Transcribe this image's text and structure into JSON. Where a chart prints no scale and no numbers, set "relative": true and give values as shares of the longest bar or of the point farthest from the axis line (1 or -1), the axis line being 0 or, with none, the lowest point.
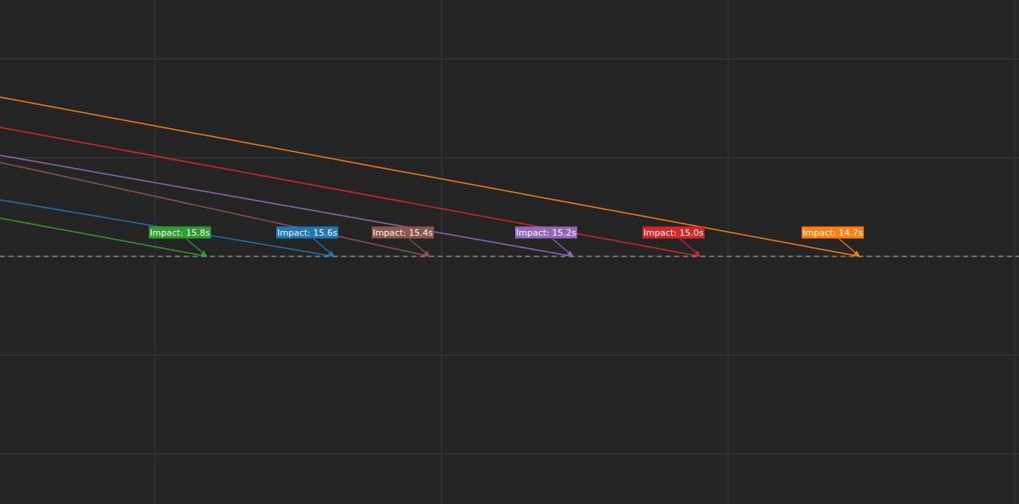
{
  "chart_data": {
    "type": "line",
    "relative": true,
    "grid": true,
    "line_style": "solid",
    "marker": "none",
    "categories": [
      null,
      null,
      null,
      null,
      null,
      null,
      null,
      null,
      null,
      null,
      null,
      null,
      null,
      null,
      null,
      null,
      null,
      null,
      null,
      null,
      null,
      null,
      null,
      null,
      null,
      null,
      null,
      null,
      null,
      null,
      null,
      null,
      null,
      null,
      null,
      null,
      null,
      null,
      null,
      null,
      null,
      null,
      null,
      null,
      null,
      null,
      null,
      null,
      null,
      null,
      null,
      null,
      null,
      null,
      null,
      null,
      null,
      null,
      null,
      null,
      null,
      null,
      null,
      null,
      null
    ],
    "series": [
      {
        "color": "#2ca02c",
        "values": [
          0.24,
          null,
          null,
          null,
          null,
          null,
          null,
          null,
          null,
          null,
          null,
          null,
          null,
          0,
          null,
          null,
          null,
          null,
          null,
          null,
          null,
          null,
          null,
          null,
          null,
          null,
          null,
          null,
          null,
          null,
          null,
          null,
          null,
          null,
          null,
          null,
          null,
          null,
          null,
          null,
          null,
          null,
          null,
          null,
          null,
          null,
          null,
          null,
          null,
          null,
          null,
          null,
          null,
          null,
          null,
          null,
          null,
          null,
          null,
          null,
          null,
          null,
          null,
          null,
          null
        ]
      },
      {
        "color": "#1f77b4",
        "values": [
          0.355,
          null,
          null,
          null,
          null,
          null,
          null,
          null,
          null,
          null,
          null,
          null,
          null,
          null,
          null,
          null,
          null,
          null,
          null,
          null,
          null,
          0,
          null,
          null,
          null,
          null,
          null,
          null,
          null,
          null,
          null,
          null,
          null,
          null,
          null,
          null,
          null,
          null,
          null,
          null,
          null,
          null,
          null,
          null,
          null,
          null,
          null,
          null,
          null,
          null,
          null,
          null,
          null,
          null,
          null,
          null,
          null,
          null,
          null,
          null,
          null,
          null,
          null,
          null,
          null
        ]
      },
      {
        "color": "#8c564b",
        "values": [
          0.59,
          null,
          null,
          null,
          null,
          null,
          null,
          null,
          null,
          null,
          null,
          null,
          null,
          null,
          null,
          null,
          null,
          null,
          null,
          null,
          null,
          null,
          null,
          null,
          null,
          null,
          null,
          0,
          null,
          null,
          null,
          null,
          null,
          null,
          null,
          null,
          null,
          null,
          null,
          null,
          null,
          null,
          null,
          null,
          null,
          null,
          null,
          null,
          null,
          null,
          null,
          null,
          null,
          null,
          null,
          null,
          null,
          null,
          null,
          null,
          null,
          null,
          null,
          null,
          null
        ]
      },
      {
        "color": "#9467bd",
        "values": [
          0.635,
          null,
          null,
          null,
          null,
          null,
          null,
          null,
          null,
          null,
          null,
          null,
          null,
          null,
          null,
          null,
          null,
          null,
          null,
          null,
          null,
          null,
          null,
          null,
          null,
          null,
          null,
          null,
          null,
          null,
          null,
          null,
          null,
          null,
          null,
          null,
          0,
          null,
          null,
          null,
          null,
          null,
          null,
          null,
          null,
          null,
          null,
          null,
          null,
          null,
          null,
          null,
          null,
          null,
          null,
          null,
          null,
          null,
          null,
          null,
          null,
          null,
          null,
          null,
          null
        ]
      },
      {
        "color": "#d62728",
        "values": [
          0.81,
          null,
          null,
          null,
          null,
          null,
          null,
          null,
          null,
          null,
          null,
          null,
          null,
          null,
          null,
          null,
          null,
          null,
          null,
          null,
          null,
          null,
          null,
          null,
          null,
          null,
          null,
          null,
          null,
          null,
          null,
          null,
          null,
          null,
          null,
          null,
          null,
          null,
          null,
          null,
          null,
          null,
          null,
          null,
          0,
          null,
          null,
          null,
          null,
          null,
          null,
          null,
          null,
          null,
          null,
          null,
          null,
          null,
          null,
          null,
          null,
          null,
          null,
          null,
          null
        ]
      },
      {
        "color": "#ff7f0e",
        "values": [
          1,
          null,
          null,
          null,
          null,
          null,
          null,
          null,
          null,
          null,
          null,
          null,
          null,
          null,
          null,
          null,
          null,
          null,
          null,
          null,
          null,
          null,
          null,
          null,
          null,
          null,
          null,
          null,
          null,
          null,
          null,
          null,
          null,
          null,
          null,
          null,
          null,
          null,
          null,
          null,
          null,
          null,
          null,
          null,
          null,
          null,
          null,
          null,
          null,
          null,
          null,
          null,
          null,
          null,
          0,
          null,
          null,
          null,
          null,
          null,
          null,
          null,
          null,
          null,
          null
        ]
      }
    ],
    "ref_lines": [
      {
        "axis": "y",
        "value": 0,
        "color": "#8a8a8a",
        "line_style": "dashed"
      }
    ],
    "annotations": [
      "Impact: 15.8s",
      "Impact: 15.6s",
      "Impact: 15.4s",
      "Impact: 15.2s",
      "Impact: 15.0s",
      "Impact: 14.7s"
    ]
  }
}
